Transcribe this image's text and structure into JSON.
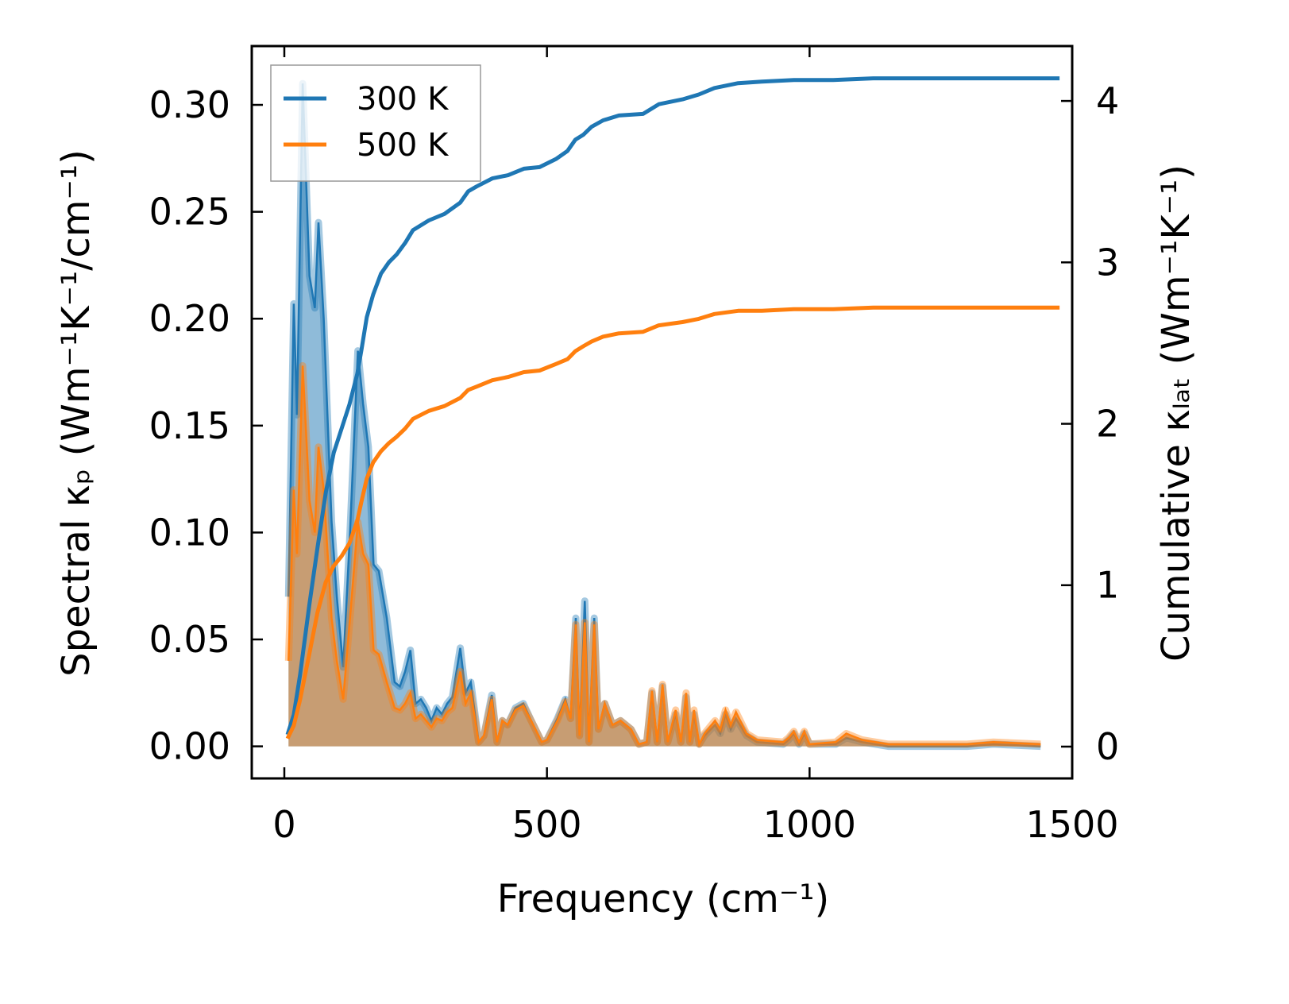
{
  "chart_data": {
    "type": "line",
    "xlabel": "Frequency (cm⁻¹)",
    "ylabel": "Spectral κₚ (Wm⁻¹K⁻¹/cm⁻¹)",
    "y2label": "Cumulative κₗₐₜ (Wm⁻¹K⁻¹)",
    "xlim": [
      -62,
      1500
    ],
    "ylim": [
      -0.015,
      0.3275
    ],
    "y2lim": [
      -0.197,
      4.34
    ],
    "xticks": [
      0,
      500,
      1000,
      1500
    ],
    "xtick_labels": [
      "0",
      "500",
      "1000",
      "1500"
    ],
    "yticks": [
      0,
      0.05,
      0.1,
      0.15,
      0.2,
      0.25,
      0.3
    ],
    "ytick_labels": [
      "0.00",
      "0.05",
      "0.10",
      "0.15",
      "0.20",
      "0.25",
      "0.30"
    ],
    "y2ticks": [
      0,
      1,
      2,
      3,
      4
    ],
    "y2tick_labels": [
      "0",
      "1",
      "2",
      "3",
      "4"
    ],
    "legend": {
      "placement": "top-left",
      "entries": [
        "300 K",
        "500 K"
      ]
    },
    "colors": {
      "300 K": "#1f77b4",
      "500 K": "#ff7f0e"
    },
    "spectral": {
      "x": [
        8,
        18,
        24,
        35,
        48,
        58,
        65,
        75,
        90,
        100,
        112,
        125,
        140,
        150,
        160,
        170,
        180,
        195,
        210,
        220,
        230,
        240,
        250,
        260,
        270,
        280,
        290,
        300,
        310,
        320,
        335,
        345,
        355,
        370,
        380,
        395,
        405,
        415,
        425,
        440,
        455,
        470,
        490,
        500,
        520,
        535,
        545,
        555,
        562,
        572,
        580,
        590,
        598,
        610,
        625,
        640,
        660,
        675,
        690,
        700,
        710,
        720,
        730,
        745,
        755,
        765,
        772,
        780,
        790,
        800,
        820,
        830,
        840,
        850,
        860,
        880,
        900,
        950,
        960,
        970,
        980,
        990,
        1000,
        1050,
        1070,
        1100,
        1150,
        1300,
        1350,
        1440
      ],
      "series": [
        {
          "name": "300 K",
          "values": [
            0.07,
            0.207,
            0.155,
            0.31,
            0.22,
            0.205,
            0.245,
            0.2,
            0.105,
            0.07,
            0.037,
            0.1,
            0.185,
            0.16,
            0.14,
            0.085,
            0.082,
            0.06,
            0.03,
            0.028,
            0.035,
            0.045,
            0.02,
            0.022,
            0.018,
            0.012,
            0.018,
            0.015,
            0.02,
            0.023,
            0.046,
            0.025,
            0.03,
            0.002,
            0.005,
            0.024,
            0.002,
            0.012,
            0.01,
            0.018,
            0.02,
            0.012,
            0.002,
            0.003,
            0.013,
            0.022,
            0.013,
            0.06,
            0.005,
            0.068,
            0.002,
            0.06,
            0.008,
            0.02,
            0.01,
            0.012,
            0.008,
            0.001,
            0.002,
            0.025,
            0.002,
            0.028,
            0.002,
            0.015,
            0.002,
            0.023,
            0.002,
            0.015,
            0.001,
            0.005,
            0.01,
            0.006,
            0.015,
            0.008,
            0.013,
            0.005,
            0.002,
            0.001,
            0.003,
            0.006,
            0.001,
            0.006,
            0.001,
            0.001,
            0.004,
            0.002,
            0,
            0,
            0.001,
            0
          ]
        },
        {
          "name": "500 K",
          "values": [
            0.04,
            0.12,
            0.09,
            0.178,
            0.115,
            0.1,
            0.14,
            0.12,
            0.06,
            0.04,
            0.022,
            0.06,
            0.105,
            0.09,
            0.085,
            0.045,
            0.043,
            0.03,
            0.018,
            0.017,
            0.02,
            0.025,
            0.013,
            0.015,
            0.012,
            0.009,
            0.013,
            0.012,
            0.016,
            0.018,
            0.035,
            0.02,
            0.025,
            0.002,
            0.005,
            0.022,
            0.002,
            0.012,
            0.01,
            0.017,
            0.019,
            0.012,
            0.002,
            0.003,
            0.012,
            0.021,
            0.013,
            0.057,
            0.005,
            0.058,
            0.002,
            0.057,
            0.008,
            0.02,
            0.01,
            0.012,
            0.008,
            0.001,
            0.002,
            0.026,
            0.002,
            0.029,
            0.002,
            0.017,
            0.002,
            0.025,
            0.002,
            0.017,
            0.001,
            0.006,
            0.012,
            0.008,
            0.017,
            0.01,
            0.016,
            0.006,
            0.003,
            0.002,
            0.004,
            0.007,
            0.002,
            0.007,
            0.001,
            0.002,
            0.006,
            0.003,
            0.001,
            0.001,
            0.002,
            0.001
          ]
        }
      ]
    },
    "cumulative": {
      "x": [
        6,
        18,
        30,
        48,
        63,
        79,
        94,
        109,
        124,
        139,
        147,
        157,
        169,
        184,
        199,
        214,
        230,
        245,
        275,
        305,
        335,
        350,
        366,
        396,
        426,
        456,
        486,
        517,
        539,
        554,
        569,
        585,
        607,
        637,
        683,
        713,
        758,
        789,
        819,
        864,
        909,
        970,
        1045,
        1121,
        1476
      ],
      "series": [
        {
          "name": "300 K",
          "values": [
            0.074,
            0.197,
            0.443,
            0.886,
            1.23,
            1.574,
            1.82,
            1.97,
            2.12,
            2.31,
            2.46,
            2.66,
            2.8,
            2.93,
            3.0,
            3.05,
            3.12,
            3.2,
            3.26,
            3.3,
            3.37,
            3.44,
            3.47,
            3.52,
            3.54,
            3.58,
            3.59,
            3.64,
            3.69,
            3.76,
            3.79,
            3.84,
            3.88,
            3.91,
            3.92,
            3.98,
            4.01,
            4.04,
            4.08,
            4.11,
            4.12,
            4.13,
            4.13,
            4.14,
            4.14
          ]
        },
        {
          "name": "500 K",
          "values": [
            0.05,
            0.13,
            0.29,
            0.58,
            0.83,
            1.02,
            1.12,
            1.18,
            1.26,
            1.4,
            1.52,
            1.66,
            1.76,
            1.83,
            1.88,
            1.92,
            1.97,
            2.03,
            2.08,
            2.11,
            2.16,
            2.21,
            2.23,
            2.27,
            2.29,
            2.32,
            2.33,
            2.37,
            2.4,
            2.45,
            2.48,
            2.51,
            2.54,
            2.56,
            2.57,
            2.61,
            2.63,
            2.65,
            2.68,
            2.7,
            2.7,
            2.71,
            2.71,
            2.72,
            2.72
          ]
        }
      ]
    }
  }
}
